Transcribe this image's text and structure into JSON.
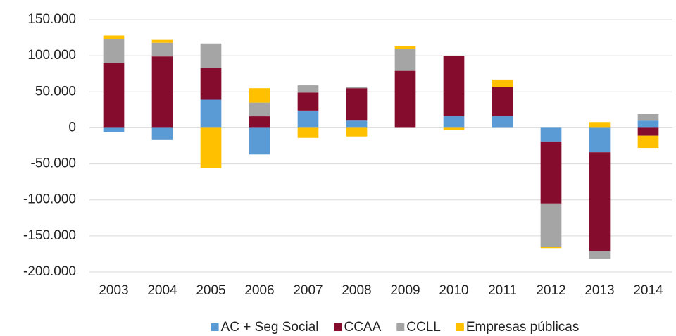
{
  "chart_data": {
    "type": "stacked-bar",
    "categories": [
      "2003",
      "2004",
      "2005",
      "2006",
      "2007",
      "2008",
      "2009",
      "2010",
      "2011",
      "2012",
      "2013",
      "2014"
    ],
    "series": [
      {
        "name": "AC + Seg Social",
        "color": "#5b9bd5",
        "values": [
          -6,
          -17,
          39,
          -37,
          24,
          10,
          0,
          16,
          16,
          -19,
          -34,
          10
        ]
      },
      {
        "name": "CCAA",
        "color": "#850c2c",
        "values": [
          90,
          99,
          44,
          16,
          25,
          45,
          79,
          84,
          41,
          -86,
          -137,
          -11
        ]
      },
      {
        "name": "CCLL",
        "color": "#a5a5a5",
        "values": [
          33,
          19,
          34,
          19,
          10,
          2,
          30,
          0,
          0,
          -60,
          -11,
          9
        ]
      },
      {
        "name": "Empresas públicas",
        "color": "#ffc000",
        "values": [
          5,
          4,
          -56,
          20,
          -14,
          -12,
          4,
          -3,
          10,
          -2,
          8,
          -17
        ]
      }
    ],
    "ylim": [
      -200000,
      150000
    ],
    "yticks": [
      {
        "value": -200000,
        "label": "-200.000"
      },
      {
        "value": -150000,
        "label": "-150.000"
      },
      {
        "value": -100000,
        "label": "-100.000"
      },
      {
        "value": -50000,
        "label": "-50.000"
      },
      0,
      {
        "value": 50000,
        "label": "50.000"
      },
      {
        "value": 100000,
        "label": "100.000"
      },
      {
        "value": 150000,
        "label": "150.000"
      }
    ],
    "value_unit": 1000,
    "grid": true,
    "legend": "bottom"
  }
}
